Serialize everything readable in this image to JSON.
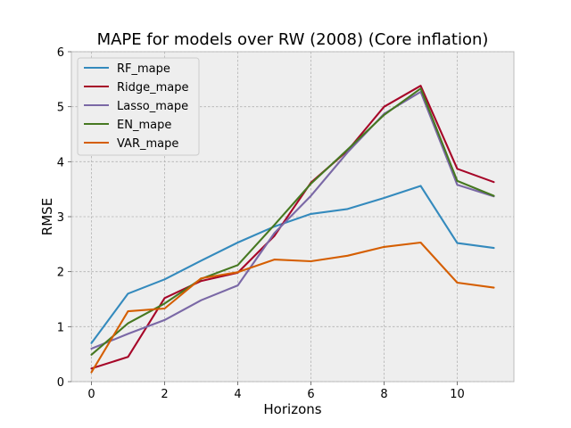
{
  "chart_data": {
    "type": "line",
    "title": "MAPE for models over RW (2008) (Core inflation)",
    "xlabel": "Horizons",
    "ylabel": "RMSE",
    "xlim": [
      -0.55,
      11.55
    ],
    "ylim": [
      0,
      6
    ],
    "x_ticks": [
      0,
      2,
      4,
      6,
      8,
      10
    ],
    "y_ticks": [
      0,
      1,
      2,
      3,
      4,
      5,
      6
    ],
    "grid": true,
    "legend_position": "top-left",
    "x": [
      0,
      1,
      2,
      3,
      4,
      5,
      6,
      7,
      8,
      9,
      10,
      11
    ],
    "series": [
      {
        "name": "RF_mape",
        "color": "#348ABD",
        "values": [
          0.7,
          1.6,
          1.86,
          2.2,
          2.53,
          2.82,
          3.05,
          3.14,
          3.34,
          3.56,
          2.52,
          2.43
        ]
      },
      {
        "name": "Ridge_mape",
        "color": "#A60628",
        "values": [
          0.24,
          0.45,
          1.52,
          1.83,
          1.98,
          2.65,
          3.62,
          4.2,
          5.0,
          5.38,
          3.87,
          3.63
        ]
      },
      {
        "name": "Lasso_mape",
        "color": "#7A68A6",
        "values": [
          0.6,
          0.87,
          1.12,
          1.48,
          1.75,
          2.7,
          3.38,
          4.17,
          4.87,
          5.27,
          3.58,
          3.37
        ]
      },
      {
        "name": "EN_mape",
        "color": "#467821",
        "values": [
          0.49,
          1.06,
          1.42,
          1.87,
          2.12,
          2.85,
          3.6,
          4.22,
          4.85,
          5.33,
          3.65,
          3.38
        ]
      },
      {
        "name": "VAR_mape",
        "color": "#D55E00",
        "values": [
          0.17,
          1.28,
          1.33,
          1.88,
          1.99,
          2.22,
          2.19,
          2.29,
          2.45,
          2.53,
          1.8,
          1.71
        ]
      }
    ]
  }
}
